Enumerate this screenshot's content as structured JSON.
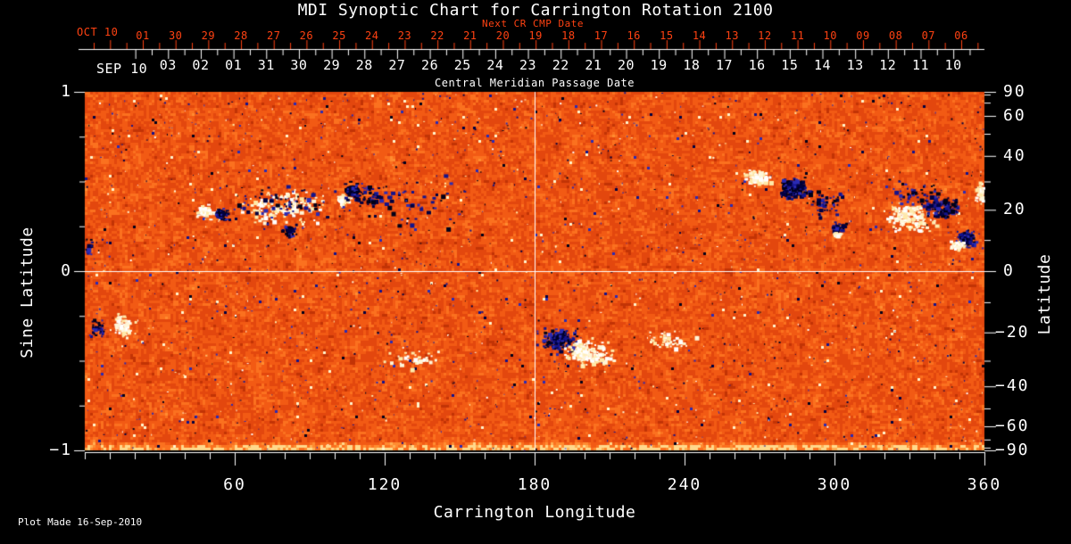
{
  "title": "MDI Synoptic Chart for Carrington Rotation 2100",
  "footer": {
    "plot_made": "Plot Made 16-Sep-2010"
  },
  "colors": {
    "background": "#000000",
    "axis_and_text": "#ffffff",
    "next_cr_text": "#ff4212",
    "quiet_sun_palette": [
      {
        "upto": 0.07,
        "color": "#a02103"
      },
      {
        "upto": 0.22,
        "color": "#c23305"
      },
      {
        "upto": 0.48,
        "color": "#e3470e"
      },
      {
        "upto": 0.7,
        "color": "#f25a14"
      },
      {
        "upto": 0.86,
        "color": "#fb711f"
      },
      {
        "upto": 0.95,
        "color": "#ff8c30"
      },
      {
        "upto": 0.985,
        "color": "#ffaf52"
      },
      {
        "upto": 1.01,
        "color": "#ffd98c"
      }
    ],
    "negative_polarity": [
      "#000040",
      "#14148c",
      "#2b2bb4",
      "#000018"
    ],
    "positive_polarity": [
      "#ffffff",
      "#fff6d8",
      "#ffe9a8"
    ]
  },
  "chart_data": {
    "type": "heatmap",
    "title": "MDI Synoptic Chart for Carrington Rotation 2100",
    "carrington_rotation": "2100",
    "xlabel": "Carrington Longitude",
    "ylabel_left": "Sine Latitude",
    "ylabel_right": "Latitude",
    "xlim": [
      0,
      360
    ],
    "ylim_sine": [
      -1,
      1
    ],
    "x_major_tick_values": [
      60,
      120,
      180,
      240,
      300,
      360
    ],
    "x_major_tick_labels": [
      "60",
      "120",
      "180",
      "240",
      "300",
      "360"
    ],
    "x_minor_step_deg": 10,
    "y_left_tick_values": [
      1,
      0,
      -1
    ],
    "y_left_tick_labels": [
      "1",
      "0",
      "−1"
    ],
    "y_left_minor_step_sine": 0.25,
    "y_right_tick_values": [
      90,
      60,
      40,
      20,
      0,
      -20,
      -40,
      -60,
      -90
    ],
    "y_right_tick_labels": [
      "90",
      "60",
      "40",
      "20",
      "0",
      "−20",
      "−40",
      "−60",
      "−90"
    ],
    "y_right_minor_step_deg": 10,
    "grid_crosshair": {
      "longitude_deg": 180,
      "latitude_deg": 0
    },
    "top_axis_next_cr": {
      "label": "Next CR CMP Date",
      "month_label": "OCT 10",
      "day_labels": [
        "01",
        "30",
        "29",
        "28",
        "27",
        "26",
        "25",
        "24",
        "23",
        "22",
        "21",
        "20",
        "19",
        "18",
        "17",
        "16",
        "15",
        "14",
        "13",
        "12",
        "11",
        "10",
        "09",
        "08",
        "07",
        "06"
      ]
    },
    "top_axis_cmp": {
      "label": "Central Meridian Passage Date",
      "month_label": "SEP 10",
      "day_labels": [
        "03",
        "02",
        "01",
        "31",
        "30",
        "29",
        "28",
        "27",
        "26",
        "25",
        "24",
        "23",
        "22",
        "21",
        "20",
        "19",
        "18",
        "17",
        "16",
        "15",
        "14",
        "13",
        "12",
        "11",
        "10"
      ]
    },
    "active_regions": [
      {
        "lon": 48.2,
        "sin_lat": 0.333,
        "polarity": "positive",
        "kind": "core",
        "r_lon": 2.6,
        "r_sin": 0.026
      },
      {
        "lon": 54.3,
        "sin_lat": 0.318,
        "polarity": "negative",
        "kind": "core",
        "r_lon": 2.2,
        "r_sin": 0.026
      },
      {
        "lon": 78.6,
        "sin_lat": 0.363,
        "polarity": "positive",
        "kind": "plage",
        "r_lon": 16,
        "r_sin": 0.09,
        "density": 150
      },
      {
        "lon": 80.4,
        "sin_lat": 0.378,
        "polarity": "negative",
        "kind": "plage",
        "r_lon": 20,
        "r_sin": 0.11,
        "density": 70
      },
      {
        "lon": 82.1,
        "sin_lat": 0.229,
        "polarity": "negative",
        "kind": "core",
        "r_lon": 1.9,
        "r_sin": 0.021
      },
      {
        "lon": 102.9,
        "sin_lat": 0.398,
        "polarity": "positive",
        "kind": "core",
        "r_lon": 1.9,
        "r_sin": 0.021
      },
      {
        "lon": 107.1,
        "sin_lat": 0.448,
        "polarity": "negative",
        "kind": "core",
        "r_lon": 3.0,
        "r_sin": 0.031
      },
      {
        "lon": 112.5,
        "sin_lat": 0.428,
        "polarity": "negative",
        "kind": "plage",
        "r_lon": 6.5,
        "r_sin": 0.06,
        "density": 55
      },
      {
        "lon": 132.0,
        "sin_lat": 0.378,
        "polarity": "negative",
        "kind": "plage",
        "r_lon": 20,
        "r_sin": 0.125,
        "density": 45
      },
      {
        "lon": 15.0,
        "sin_lat": -0.303,
        "polarity": "positive",
        "kind": "plage",
        "r_lon": 5,
        "r_sin": 0.06,
        "density": 65
      },
      {
        "lon": 5.0,
        "sin_lat": -0.313,
        "polarity": "negative",
        "kind": "plage",
        "r_lon": 3,
        "r_sin": 0.05,
        "density": 28
      },
      {
        "lon": 130.4,
        "sin_lat": -0.483,
        "polarity": "positive",
        "kind": "plage",
        "r_lon": 10,
        "r_sin": 0.05,
        "density": 32
      },
      {
        "lon": 188.6,
        "sin_lat": -0.383,
        "polarity": "negative",
        "kind": "plage",
        "r_lon": 8,
        "r_sin": 0.07,
        "density": 130
      },
      {
        "lon": 190.4,
        "sin_lat": -0.373,
        "polarity": "negative",
        "kind": "core",
        "r_lon": 2.1,
        "r_sin": 0.025
      },
      {
        "lon": 200.7,
        "sin_lat": -0.453,
        "polarity": "positive",
        "kind": "plage",
        "r_lon": 9,
        "r_sin": 0.065,
        "density": 140
      },
      {
        "lon": 198.6,
        "sin_lat": -0.443,
        "polarity": "positive",
        "kind": "core",
        "r_lon": 2.5,
        "r_sin": 0.025
      },
      {
        "lon": 233.9,
        "sin_lat": -0.383,
        "polarity": "positive",
        "kind": "plage",
        "r_lon": 10,
        "r_sin": 0.06,
        "density": 45
      },
      {
        "lon": 268.6,
        "sin_lat": 0.522,
        "polarity": "positive",
        "kind": "plage",
        "r_lon": 5,
        "r_sin": 0.045,
        "density": 90
      },
      {
        "lon": 282.1,
        "sin_lat": 0.473,
        "polarity": "negative",
        "kind": "core",
        "r_lon": 3.2,
        "r_sin": 0.035
      },
      {
        "lon": 283.2,
        "sin_lat": 0.468,
        "polarity": "negative",
        "kind": "plage",
        "r_lon": 6,
        "r_sin": 0.06,
        "density": 120
      },
      {
        "lon": 296.4,
        "sin_lat": 0.393,
        "polarity": "negative",
        "kind": "plage",
        "r_lon": 8,
        "r_sin": 0.07,
        "density": 45
      },
      {
        "lon": 301.1,
        "sin_lat": 0.254,
        "polarity": "negative",
        "kind": "plage",
        "r_lon": 3,
        "r_sin": 0.03,
        "density": 32
      },
      {
        "lon": 300.4,
        "sin_lat": 0.209,
        "polarity": "positive",
        "kind": "plage",
        "r_lon": 1.8,
        "r_sin": 0.015,
        "density": 14
      },
      {
        "lon": 329.3,
        "sin_lat": 0.303,
        "polarity": "positive",
        "kind": "plage",
        "r_lon": 9.5,
        "r_sin": 0.07,
        "density": 160
      },
      {
        "lon": 342.1,
        "sin_lat": 0.363,
        "polarity": "negative",
        "kind": "plage",
        "r_lon": 7,
        "r_sin": 0.06,
        "density": 130
      },
      {
        "lon": 332.1,
        "sin_lat": 0.428,
        "polarity": "negative",
        "kind": "plage",
        "r_lon": 11,
        "r_sin": 0.075,
        "density": 45
      },
      {
        "lon": 352.5,
        "sin_lat": 0.189,
        "polarity": "negative",
        "kind": "core",
        "r_lon": 2.6,
        "r_sin": 0.031
      },
      {
        "lon": 351.8,
        "sin_lat": 0.189,
        "polarity": "negative",
        "kind": "plage",
        "r_lon": 3.5,
        "r_sin": 0.035,
        "density": 42
      },
      {
        "lon": 349.3,
        "sin_lat": 0.144,
        "polarity": "positive",
        "kind": "core",
        "r_lon": 2.2,
        "r_sin": 0.021
      },
      {
        "lon": 357.9,
        "sin_lat": 0.443,
        "polarity": "positive",
        "kind": "plage",
        "r_lon": 1.8,
        "r_sin": 0.06,
        "density": 32
      },
      {
        "lon": 1.4,
        "sin_lat": 0.144,
        "polarity": "negative",
        "kind": "plage",
        "r_lon": 1.5,
        "r_sin": 0.05,
        "density": 16
      }
    ]
  }
}
